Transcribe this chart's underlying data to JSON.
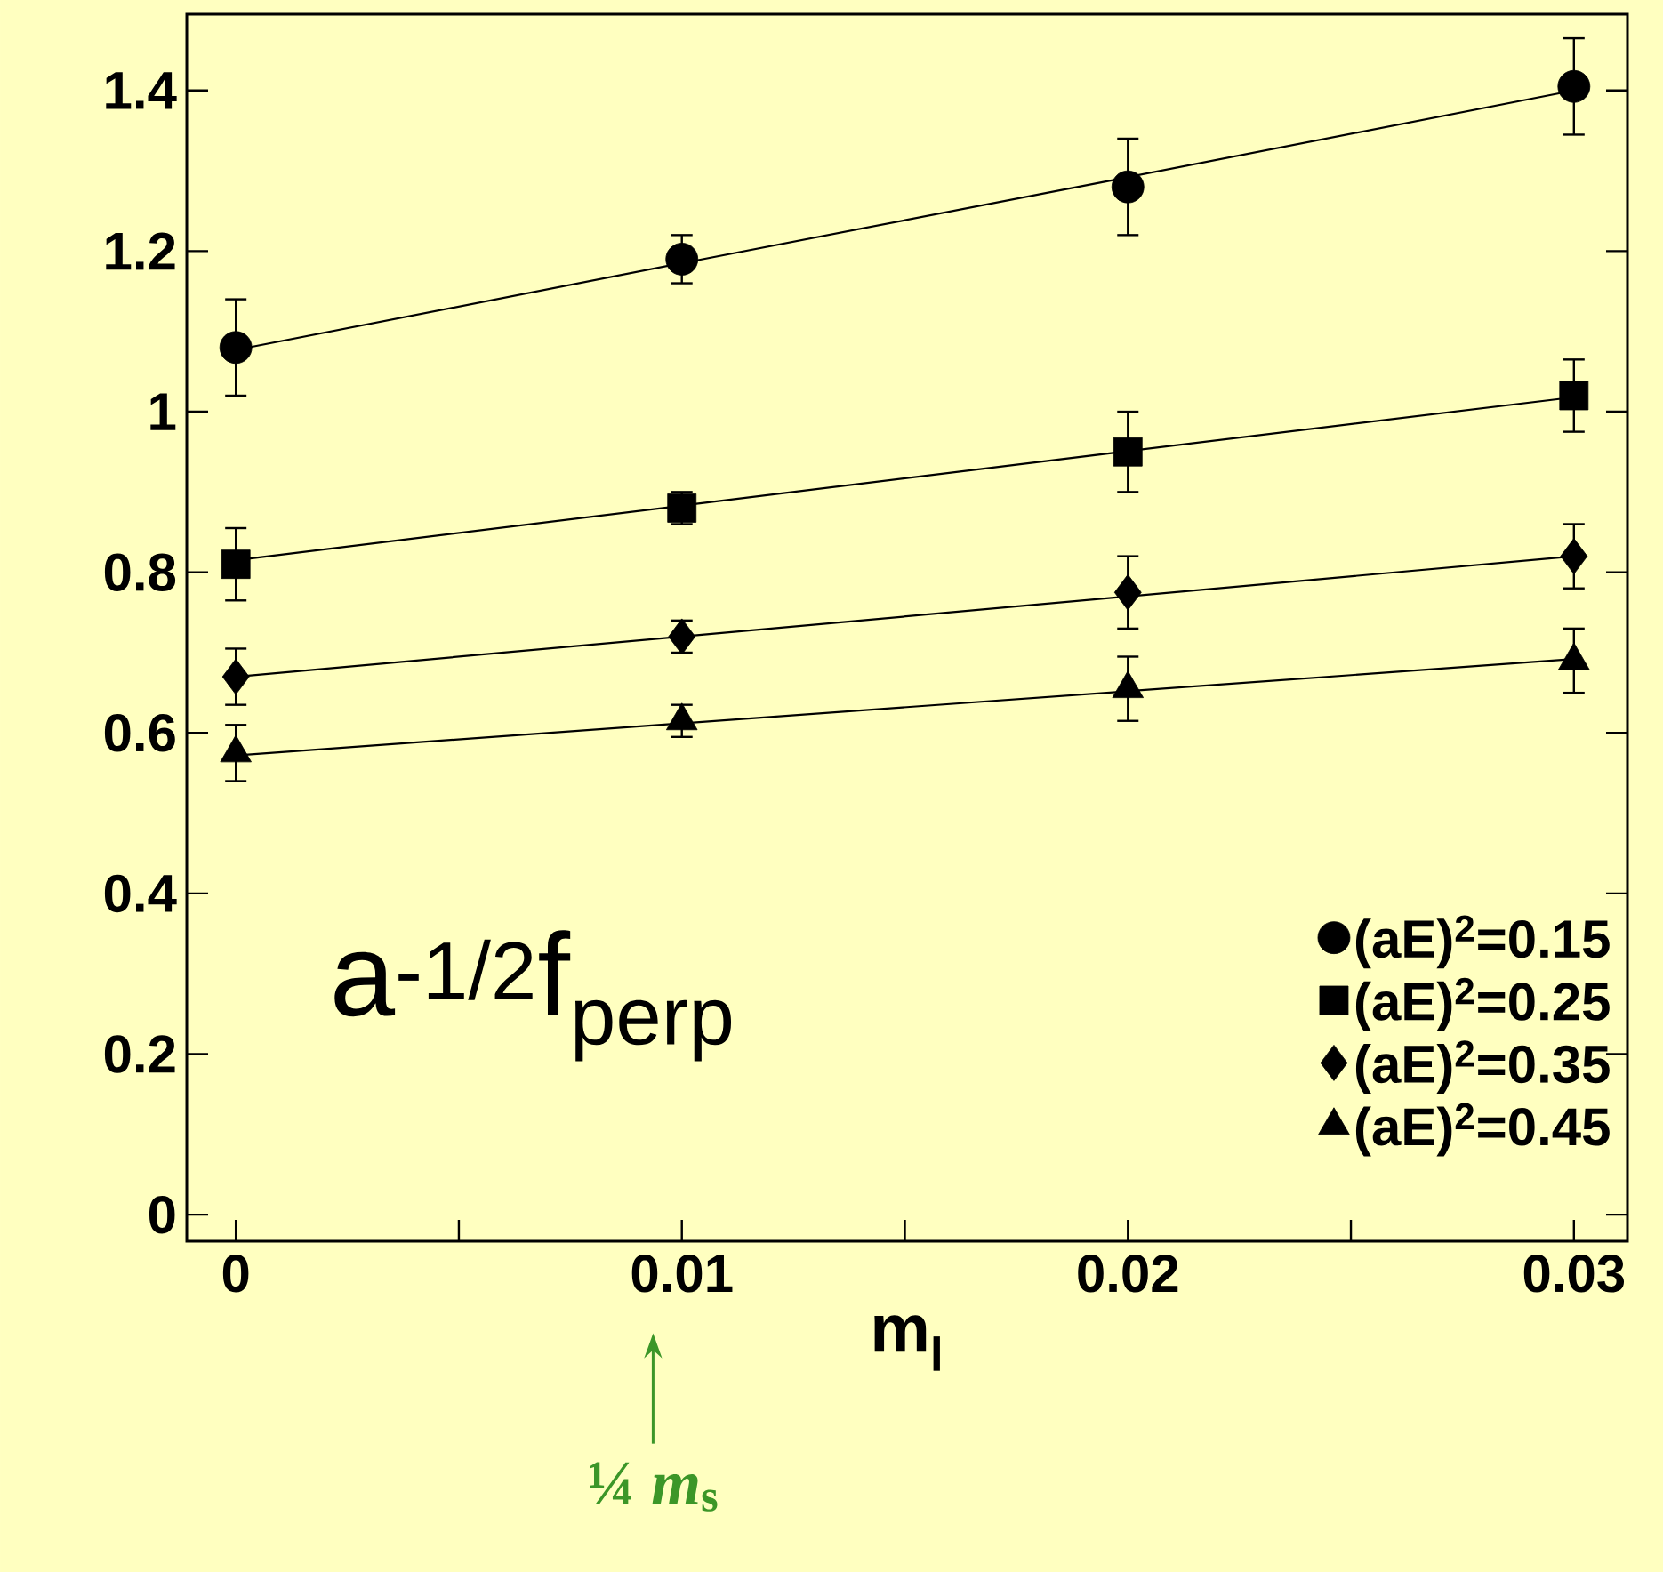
{
  "chart_data": {
    "type": "scatter",
    "xlabel": "m$_{l}$",
    "xlim": [
      -0.0011,
      0.0312
    ],
    "ylim": [
      -0.033,
      1.495
    ],
    "xticks": [
      0,
      {
        "value": 0.005,
        "label": null
      },
      0.01,
      {
        "value": 0.015,
        "label": null
      },
      0.02,
      {
        "value": 0.025,
        "label": null
      },
      0.03
    ],
    "yticks": [
      0,
      0.2,
      0.4,
      0.6,
      0.8,
      1,
      1.2,
      1.4
    ],
    "x": [
      0,
      0.01,
      0.02,
      0.03
    ],
    "legend": "bottom right",
    "series": [
      {
        "name": "(aE)$^{2}$=0.15",
        "color": "#000000",
        "marker": "circle",
        "values": [
          1.08,
          1.19,
          1.28,
          1.405
        ],
        "errors": [
          0.06,
          0.03,
          0.06,
          0.06
        ]
      },
      {
        "name": "(aE)$^{2}$=0.25",
        "color": "#000000",
        "marker": "square",
        "values": [
          0.81,
          0.88,
          0.95,
          1.02
        ],
        "errors": [
          0.045,
          0.02,
          0.05,
          0.045
        ]
      },
      {
        "name": "(aE)$^{2}$=0.35",
        "color": "#000000",
        "marker": "diamond",
        "values": [
          0.67,
          0.72,
          0.775,
          0.82
        ],
        "errors": [
          0.035,
          0.02,
          0.045,
          0.04
        ]
      },
      {
        "name": "(aE)$^{2}$=0.45",
        "color": "#000000",
        "marker": "triangle",
        "values": [
          0.575,
          0.615,
          0.655,
          0.69
        ],
        "errors": [
          0.035,
          0.02,
          0.04,
          0.04
        ]
      },
      {
        "type": "line",
        "color": "#000000",
        "values": [
          1.077,
          1.185,
          1.292,
          1.4
        ]
      },
      {
        "type": "line",
        "color": "#000000",
        "values": [
          0.815,
          0.883,
          0.951,
          1.018
        ]
      },
      {
        "type": "line",
        "color": "#000000",
        "values": [
          0.67,
          0.72,
          0.77,
          0.82
        ]
      },
      {
        "type": "line",
        "color": "#000000",
        "values": [
          0.572,
          0.612,
          0.652,
          0.692
        ]
      }
    ],
    "annotations": [
      "a$^{-1/2}$f$_{perp}$",
      "¼ *m*$_{s}$"
    ]
  }
}
